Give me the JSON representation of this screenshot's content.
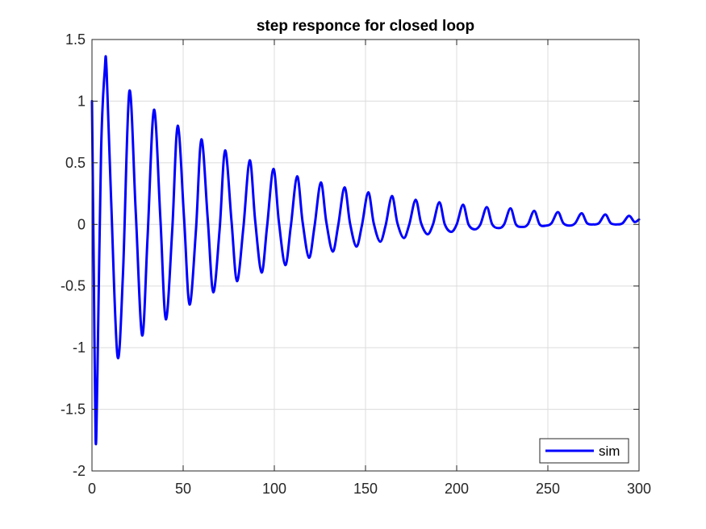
{
  "chart_data": {
    "type": "line",
    "title": "step responce for closed loop",
    "xlabel": "",
    "ylabel": "",
    "xlim": [
      0,
      300
    ],
    "ylim": [
      -2,
      1.5
    ],
    "xticks": [
      0,
      50,
      100,
      150,
      200,
      250,
      300
    ],
    "xtick_labels": [
      "0",
      "50",
      "100",
      "150",
      "200",
      "250",
      "300"
    ],
    "yticks": [
      -2,
      -1.5,
      -1,
      -0.5,
      0,
      0.5,
      1,
      1.5
    ],
    "ytick_labels": [
      "-2",
      "-1.5",
      "-1",
      "-0.5",
      "0",
      "0.5",
      "1",
      "1.5"
    ],
    "grid": true,
    "legend_position": "bottom-right",
    "series": [
      {
        "name": "sim",
        "color": "#0000ff",
        "x": [
          0,
          1,
          2,
          3,
          5,
          7,
          8,
          10.5,
          14,
          17,
          20.5,
          24,
          27.5,
          30.5,
          34,
          37.5,
          40.5,
          44,
          47,
          50.5,
          53.5,
          57,
          60,
          63.5,
          66.5,
          70,
          73,
          76.5,
          79.5,
          83,
          86.5,
          89.5,
          93,
          96,
          99.5,
          102.5,
          106,
          109,
          112.5,
          115.5,
          119,
          122,
          125.5,
          128.5,
          132,
          135,
          138.5,
          141.5,
          145,
          148,
          151.5,
          154.5,
          158,
          161,
          164.5,
          167.5,
          171,
          174,
          177.5,
          180.5,
          184,
          187,
          190.5,
          193.5,
          197,
          200,
          203.5,
          206.5,
          210,
          213,
          216.5,
          219.5,
          223,
          226,
          229.5,
          232.5,
          236,
          239,
          242.5,
          245.5,
          249,
          252,
          255.5,
          258.5,
          262,
          265,
          268.5,
          271.5,
          275,
          278,
          281.5,
          284.5,
          288,
          291,
          294.5,
          297.5,
          300
        ],
        "y": [
          1.0,
          -0.4,
          -1.75,
          -1.2,
          0.6,
          1.25,
          1.26,
          0.2,
          -1.07,
          -0.4,
          1.08,
          0.1,
          -0.9,
          -0.1,
          0.93,
          0.05,
          -0.77,
          -0.05,
          0.8,
          0.05,
          -0.65,
          -0.05,
          0.69,
          0.04,
          -0.55,
          -0.04,
          0.6,
          0.03,
          -0.46,
          -0.03,
          0.52,
          0.03,
          -0.39,
          -0.02,
          0.45,
          0.02,
          -0.33,
          -0.02,
          0.39,
          0.02,
          -0.27,
          -0.02,
          0.34,
          0.02,
          -0.22,
          -0.01,
          0.3,
          0.01,
          -0.18,
          -0.01,
          0.26,
          0.01,
          -0.14,
          -0.01,
          0.23,
          0.01,
          -0.11,
          0.0,
          0.2,
          0.01,
          -0.08,
          0.0,
          0.18,
          0.0,
          -0.06,
          0.0,
          0.16,
          0.0,
          -0.04,
          0.0,
          0.14,
          0.0,
          -0.03,
          0.0,
          0.13,
          0.0,
          -0.02,
          0.0,
          0.11,
          0.0,
          -0.01,
          0.01,
          0.1,
          0.01,
          -0.01,
          0.01,
          0.09,
          0.01,
          0.0,
          0.01,
          0.08,
          0.01,
          0.0,
          0.01,
          0.07,
          0.02,
          0.04
        ]
      }
    ]
  }
}
